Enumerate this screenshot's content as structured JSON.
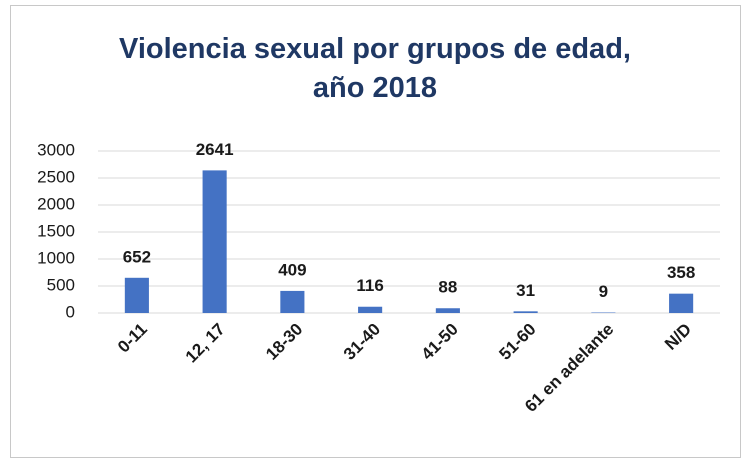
{
  "chart_data": {
    "type": "bar",
    "title": "Violencia sexual por grupos de edad, año 2018",
    "categories": [
      "0-11",
      "12, 17",
      "18-30",
      "31-40",
      "41-50",
      "51-60",
      "61 en adelante",
      "N/D"
    ],
    "values": [
      652,
      2641,
      409,
      116,
      88,
      31,
      9,
      358
    ],
    "color": "#4472c4",
    "ylim": [
      0,
      3000
    ],
    "yticks": [
      0,
      500,
      1000,
      1500,
      2000,
      2500,
      3000
    ],
    "grid": true
  }
}
